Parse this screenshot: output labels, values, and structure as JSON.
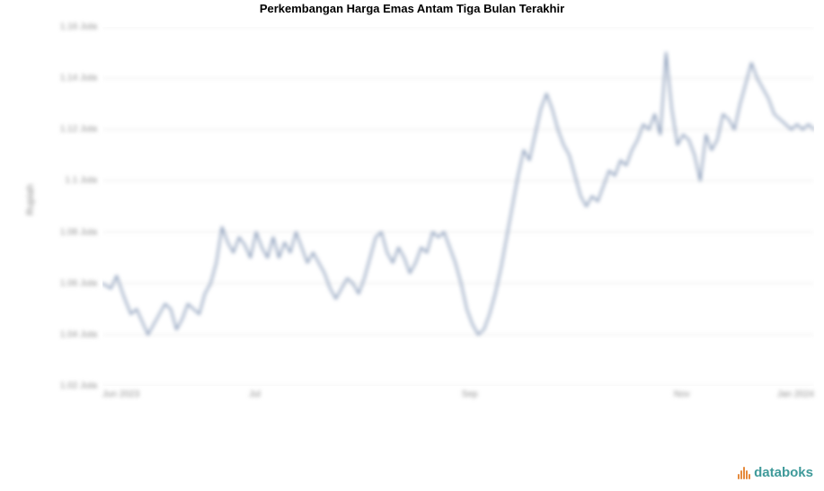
{
  "chart": {
    "title": "Perkembangan Harga Emas Antam Tiga Bulan Terakhir",
    "y_axis_title": "Rupiah",
    "type": "line",
    "background_color": "#ffffff",
    "grid_color": "#e8e8e8",
    "grid_width": 1,
    "line_color": "#7a8fb0",
    "line_width": 1.8,
    "title_fontsize": 13,
    "title_fontweight": "bold",
    "label_fontsize": 10,
    "label_color": "#8f8f8f",
    "blur_labels": true,
    "ylim": [
      1020000,
      1160000
    ],
    "ytick_step": 20000,
    "y_ticks": [
      {
        "value": 1020000,
        "label": "1.02 Juta"
      },
      {
        "value": 1040000,
        "label": "1.04 Juta"
      },
      {
        "value": 1060000,
        "label": "1.06 Juta"
      },
      {
        "value": 1080000,
        "label": "1.08 Juta"
      },
      {
        "value": 1100000,
        "label": "1.1 Juta"
      },
      {
        "value": 1120000,
        "label": "1.12 Juta"
      },
      {
        "value": 1140000,
        "label": "1.14 Juta"
      },
      {
        "value": 1160000,
        "label": "1.16 Juta"
      }
    ],
    "x_ticks": [
      {
        "pos": 0.0,
        "label": "Jun 2023"
      },
      {
        "pos": 0.214,
        "label": "Jul"
      },
      {
        "pos": 0.516,
        "label": "Sep"
      },
      {
        "pos": 0.814,
        "label": "Nov"
      },
      {
        "pos": 1.0,
        "label": "Jan 2024"
      }
    ],
    "series": [
      {
        "x": 0.0,
        "y": 1060000
      },
      {
        "x": 0.012,
        "y": 1058000
      },
      {
        "x": 0.02,
        "y": 1063000
      },
      {
        "x": 0.03,
        "y": 1055000
      },
      {
        "x": 0.04,
        "y": 1048000
      },
      {
        "x": 0.048,
        "y": 1050000
      },
      {
        "x": 0.056,
        "y": 1045000
      },
      {
        "x": 0.064,
        "y": 1040000
      },
      {
        "x": 0.072,
        "y": 1044000
      },
      {
        "x": 0.08,
        "y": 1048000
      },
      {
        "x": 0.088,
        "y": 1052000
      },
      {
        "x": 0.096,
        "y": 1050000
      },
      {
        "x": 0.104,
        "y": 1042000
      },
      {
        "x": 0.112,
        "y": 1046000
      },
      {
        "x": 0.12,
        "y": 1052000
      },
      {
        "x": 0.128,
        "y": 1050000
      },
      {
        "x": 0.136,
        "y": 1048000
      },
      {
        "x": 0.144,
        "y": 1056000
      },
      {
        "x": 0.152,
        "y": 1060000
      },
      {
        "x": 0.16,
        "y": 1068000
      },
      {
        "x": 0.168,
        "y": 1082000
      },
      {
        "x": 0.176,
        "y": 1076000
      },
      {
        "x": 0.184,
        "y": 1072000
      },
      {
        "x": 0.192,
        "y": 1078000
      },
      {
        "x": 0.2,
        "y": 1075000
      },
      {
        "x": 0.208,
        "y": 1070000
      },
      {
        "x": 0.216,
        "y": 1080000
      },
      {
        "x": 0.224,
        "y": 1074000
      },
      {
        "x": 0.232,
        "y": 1070000
      },
      {
        "x": 0.24,
        "y": 1078000
      },
      {
        "x": 0.248,
        "y": 1070000
      },
      {
        "x": 0.256,
        "y": 1076000
      },
      {
        "x": 0.264,
        "y": 1072000
      },
      {
        "x": 0.272,
        "y": 1080000
      },
      {
        "x": 0.28,
        "y": 1074000
      },
      {
        "x": 0.288,
        "y": 1068000
      },
      {
        "x": 0.296,
        "y": 1072000
      },
      {
        "x": 0.304,
        "y": 1068000
      },
      {
        "x": 0.312,
        "y": 1064000
      },
      {
        "x": 0.32,
        "y": 1058000
      },
      {
        "x": 0.328,
        "y": 1054000
      },
      {
        "x": 0.336,
        "y": 1058000
      },
      {
        "x": 0.344,
        "y": 1062000
      },
      {
        "x": 0.352,
        "y": 1060000
      },
      {
        "x": 0.36,
        "y": 1056000
      },
      {
        "x": 0.368,
        "y": 1062000
      },
      {
        "x": 0.376,
        "y": 1070000
      },
      {
        "x": 0.384,
        "y": 1078000
      },
      {
        "x": 0.392,
        "y": 1080000
      },
      {
        "x": 0.4,
        "y": 1072000
      },
      {
        "x": 0.408,
        "y": 1068000
      },
      {
        "x": 0.416,
        "y": 1074000
      },
      {
        "x": 0.424,
        "y": 1070000
      },
      {
        "x": 0.432,
        "y": 1064000
      },
      {
        "x": 0.44,
        "y": 1068000
      },
      {
        "x": 0.448,
        "y": 1074000
      },
      {
        "x": 0.456,
        "y": 1072000
      },
      {
        "x": 0.464,
        "y": 1080000
      },
      {
        "x": 0.472,
        "y": 1078000
      },
      {
        "x": 0.48,
        "y": 1080000
      },
      {
        "x": 0.488,
        "y": 1074000
      },
      {
        "x": 0.496,
        "y": 1068000
      },
      {
        "x": 0.504,
        "y": 1060000
      },
      {
        "x": 0.512,
        "y": 1050000
      },
      {
        "x": 0.52,
        "y": 1044000
      },
      {
        "x": 0.528,
        "y": 1040000
      },
      {
        "x": 0.536,
        "y": 1042000
      },
      {
        "x": 0.544,
        "y": 1048000
      },
      {
        "x": 0.552,
        "y": 1056000
      },
      {
        "x": 0.56,
        "y": 1066000
      },
      {
        "x": 0.568,
        "y": 1078000
      },
      {
        "x": 0.576,
        "y": 1090000
      },
      {
        "x": 0.584,
        "y": 1102000
      },
      {
        "x": 0.592,
        "y": 1112000
      },
      {
        "x": 0.6,
        "y": 1108000
      },
      {
        "x": 0.608,
        "y": 1118000
      },
      {
        "x": 0.616,
        "y": 1128000
      },
      {
        "x": 0.624,
        "y": 1134000
      },
      {
        "x": 0.632,
        "y": 1128000
      },
      {
        "x": 0.64,
        "y": 1120000
      },
      {
        "x": 0.648,
        "y": 1114000
      },
      {
        "x": 0.656,
        "y": 1110000
      },
      {
        "x": 0.664,
        "y": 1102000
      },
      {
        "x": 0.672,
        "y": 1094000
      },
      {
        "x": 0.68,
        "y": 1090000
      },
      {
        "x": 0.688,
        "y": 1094000
      },
      {
        "x": 0.696,
        "y": 1092000
      },
      {
        "x": 0.704,
        "y": 1098000
      },
      {
        "x": 0.712,
        "y": 1104000
      },
      {
        "x": 0.72,
        "y": 1102000
      },
      {
        "x": 0.728,
        "y": 1108000
      },
      {
        "x": 0.736,
        "y": 1106000
      },
      {
        "x": 0.744,
        "y": 1112000
      },
      {
        "x": 0.752,
        "y": 1116000
      },
      {
        "x": 0.76,
        "y": 1122000
      },
      {
        "x": 0.768,
        "y": 1120000
      },
      {
        "x": 0.776,
        "y": 1126000
      },
      {
        "x": 0.784,
        "y": 1118000
      },
      {
        "x": 0.792,
        "y": 1150000
      },
      {
        "x": 0.8,
        "y": 1128000
      },
      {
        "x": 0.808,
        "y": 1114000
      },
      {
        "x": 0.816,
        "y": 1118000
      },
      {
        "x": 0.824,
        "y": 1116000
      },
      {
        "x": 0.832,
        "y": 1110000
      },
      {
        "x": 0.84,
        "y": 1100000
      },
      {
        "x": 0.848,
        "y": 1118000
      },
      {
        "x": 0.856,
        "y": 1112000
      },
      {
        "x": 0.864,
        "y": 1116000
      },
      {
        "x": 0.872,
        "y": 1126000
      },
      {
        "x": 0.88,
        "y": 1124000
      },
      {
        "x": 0.888,
        "y": 1120000
      },
      {
        "x": 0.896,
        "y": 1130000
      },
      {
        "x": 0.904,
        "y": 1138000
      },
      {
        "x": 0.912,
        "y": 1146000
      },
      {
        "x": 0.92,
        "y": 1140000
      },
      {
        "x": 0.928,
        "y": 1136000
      },
      {
        "x": 0.936,
        "y": 1132000
      },
      {
        "x": 0.944,
        "y": 1126000
      },
      {
        "x": 0.952,
        "y": 1124000
      },
      {
        "x": 0.96,
        "y": 1122000
      },
      {
        "x": 0.968,
        "y": 1120000
      },
      {
        "x": 0.976,
        "y": 1122000
      },
      {
        "x": 0.984,
        "y": 1120000
      },
      {
        "x": 0.992,
        "y": 1122000
      },
      {
        "x": 1.0,
        "y": 1120000
      }
    ]
  },
  "brand": {
    "text": "databoks",
    "icon_color": "#e58a3c",
    "text_color": "#3f9a9a"
  }
}
